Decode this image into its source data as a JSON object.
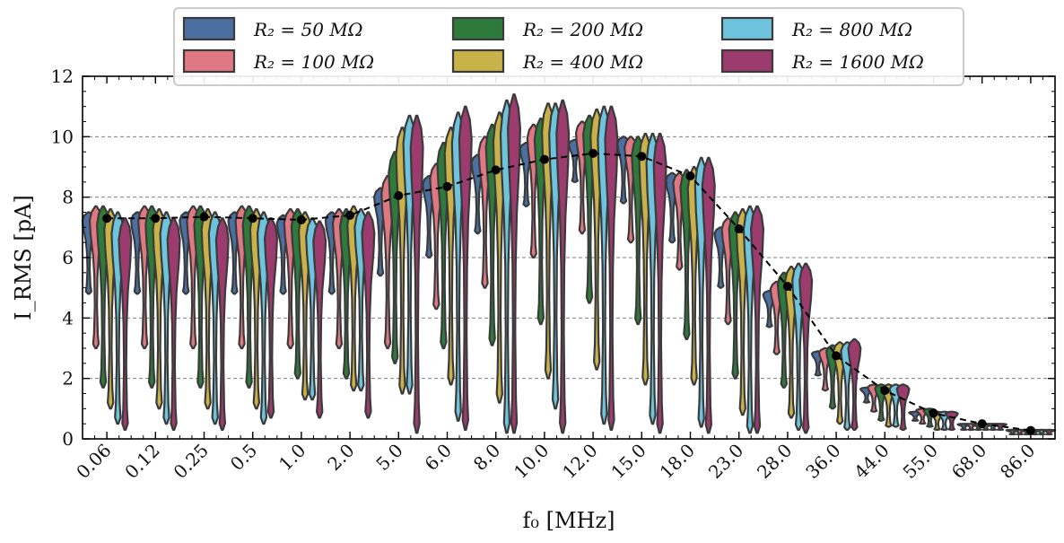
{
  "chart_data": {
    "type": "violin",
    "xlabel": "f₀ [MHz]",
    "ylabel": "I_RMS [pA]",
    "ylim": [
      0,
      12
    ],
    "yticks": [
      0,
      2,
      4,
      6,
      8,
      10,
      12
    ],
    "grid": "horizontal dashed",
    "legend_position": "top-center",
    "categories": [
      "0.06",
      "0.12",
      "0.25",
      "0.5",
      "1.0",
      "2.0",
      "5.0",
      "6.0",
      "8.0",
      "10.0",
      "12.0",
      "15.0",
      "18.0",
      "23.0",
      "28.0",
      "36.0",
      "44.0",
      "55.0",
      "68.0",
      "86.0"
    ],
    "series": [
      {
        "name": "R₂ = 50 MΩ",
        "color": "#4a6fa0"
      },
      {
        "name": "R₂ = 100 MΩ",
        "color": "#e07883"
      },
      {
        "name": "R₂ = 200 MΩ",
        "color": "#2e7a3a"
      },
      {
        "name": "R₂ = 400 MΩ",
        "color": "#c8b24a"
      },
      {
        "name": "R₂ = 800 MΩ",
        "color": "#6ec3dd"
      },
      {
        "name": "R₂ = 1600 MΩ",
        "color": "#9b3b6e"
      }
    ],
    "violin_ranges": [
      [
        [
          4.8,
          7.5
        ],
        [
          3.0,
          7.7
        ],
        [
          1.7,
          7.7
        ],
        [
          1.0,
          7.6
        ],
        [
          0.5,
          7.5
        ],
        [
          0.3,
          7.3
        ]
      ],
      [
        [
          4.8,
          7.5
        ],
        [
          3.0,
          7.7
        ],
        [
          1.7,
          7.7
        ],
        [
          1.0,
          7.6
        ],
        [
          0.5,
          7.5
        ],
        [
          0.3,
          7.3
        ]
      ],
      [
        [
          4.8,
          7.5
        ],
        [
          3.0,
          7.7
        ],
        [
          1.7,
          7.7
        ],
        [
          1.0,
          7.6
        ],
        [
          0.5,
          7.5
        ],
        [
          0.3,
          7.3
        ]
      ],
      [
        [
          4.8,
          7.5
        ],
        [
          3.0,
          7.7
        ],
        [
          1.7,
          7.7
        ],
        [
          1.0,
          7.6
        ],
        [
          0.5,
          7.5
        ],
        [
          0.7,
          7.3
        ]
      ],
      [
        [
          4.8,
          7.4
        ],
        [
          3.0,
          7.6
        ],
        [
          2.0,
          7.6
        ],
        [
          1.3,
          7.5
        ],
        [
          1.3,
          7.3
        ],
        [
          0.7,
          7.2
        ]
      ],
      [
        [
          4.8,
          7.5
        ],
        [
          3.0,
          7.6
        ],
        [
          2.0,
          7.6
        ],
        [
          1.6,
          7.7
        ],
        [
          1.6,
          7.6
        ],
        [
          0.7,
          7.5
        ]
      ],
      [
        [
          5.4,
          8.3
        ],
        [
          3.0,
          8.7
        ],
        [
          2.5,
          9.5
        ],
        [
          1.5,
          10.3
        ],
        [
          1.5,
          10.7
        ],
        [
          0.2,
          10.7
        ]
      ],
      [
        [
          6.0,
          8.7
        ],
        [
          4.3,
          9.1
        ],
        [
          3.0,
          9.8
        ],
        [
          1.8,
          10.3
        ],
        [
          0.6,
          10.8
        ],
        [
          0.3,
          11.0
        ]
      ],
      [
        [
          6.8,
          9.4
        ],
        [
          5.0,
          10.0
        ],
        [
          3.1,
          10.4
        ],
        [
          1.2,
          10.8
        ],
        [
          0.2,
          11.2
        ],
        [
          0.2,
          11.4
        ]
      ],
      [
        [
          7.7,
          9.8
        ],
        [
          6.0,
          10.4
        ],
        [
          3.8,
          10.6
        ],
        [
          2.0,
          11.1
        ],
        [
          1.0,
          11.1
        ],
        [
          0.2,
          11.2
        ]
      ],
      [
        [
          8.5,
          9.9
        ],
        [
          6.8,
          10.5
        ],
        [
          4.5,
          10.7
        ],
        [
          2.3,
          10.9
        ],
        [
          0.5,
          11.0
        ],
        [
          0.3,
          11.0
        ]
      ],
      [
        [
          7.8,
          10.0
        ],
        [
          6.5,
          10.0
        ],
        [
          3.8,
          10.0
        ],
        [
          1.8,
          10.1
        ],
        [
          0.5,
          10.1
        ],
        [
          0.2,
          10.1
        ]
      ],
      [
        [
          6.5,
          8.8
        ],
        [
          5.6,
          8.8
        ],
        [
          3.3,
          8.9
        ],
        [
          1.8,
          9.0
        ],
        [
          0.4,
          9.3
        ],
        [
          0.2,
          9.3
        ]
      ],
      [
        [
          5.0,
          7.0
        ],
        [
          3.8,
          7.3
        ],
        [
          2.0,
          7.5
        ],
        [
          0.8,
          7.6
        ],
        [
          0.2,
          7.7
        ],
        [
          0.2,
          7.7
        ]
      ],
      [
        [
          3.7,
          4.9
        ],
        [
          2.8,
          5.2
        ],
        [
          1.7,
          5.5
        ],
        [
          0.7,
          5.7
        ],
        [
          0.3,
          5.8
        ],
        [
          0.2,
          5.8
        ]
      ],
      [
        [
          2.1,
          2.9
        ],
        [
          1.6,
          3.0
        ],
        [
          1.0,
          3.1
        ],
        [
          0.5,
          3.2
        ],
        [
          0.3,
          3.2
        ],
        [
          0.3,
          3.3
        ]
      ],
      [
        [
          1.2,
          1.7
        ],
        [
          0.9,
          1.8
        ],
        [
          0.6,
          1.8
        ],
        [
          0.4,
          1.8
        ],
        [
          0.4,
          1.8
        ],
        [
          0.3,
          1.8
        ]
      ],
      [
        [
          0.6,
          0.9
        ],
        [
          0.5,
          1.0
        ],
        [
          0.4,
          1.0
        ],
        [
          0.3,
          0.9
        ],
        [
          0.3,
          0.9
        ],
        [
          0.3,
          0.9
        ]
      ],
      [
        [
          0.3,
          0.5
        ],
        [
          0.3,
          0.5
        ],
        [
          0.3,
          0.5
        ],
        [
          0.3,
          0.5
        ],
        [
          0.3,
          0.5
        ],
        [
          0.3,
          0.5
        ]
      ],
      [
        [
          0.15,
          0.3
        ],
        [
          0.15,
          0.3
        ],
        [
          0.15,
          0.3
        ],
        [
          0.15,
          0.3
        ],
        [
          0.15,
          0.3
        ],
        [
          0.15,
          0.3
        ]
      ]
    ],
    "mean_line": {
      "style": "dashed black with dot markers",
      "values": [
        7.3,
        7.3,
        7.35,
        7.3,
        7.25,
        7.4,
        8.05,
        8.35,
        8.9,
        9.25,
        9.45,
        9.35,
        8.7,
        6.95,
        5.05,
        2.75,
        1.6,
        0.85,
        0.5,
        0.28
      ]
    }
  }
}
